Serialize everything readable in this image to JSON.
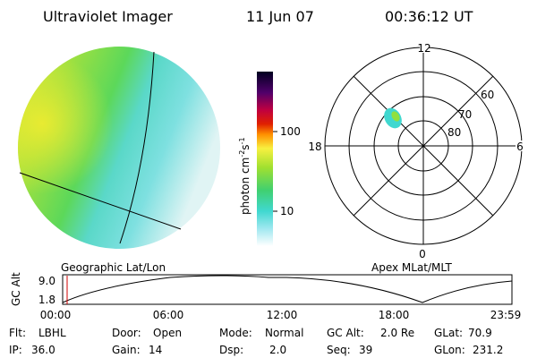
{
  "header": {
    "title": "Ultraviolet Imager",
    "date": "11 Jun 07",
    "time": "00:36:12 UT"
  },
  "colorbar": {
    "label_parts": [
      "photon cm",
      "-2",
      "s",
      "-1"
    ],
    "ticks": [
      "100",
      "10"
    ]
  },
  "polar": {
    "mlt_labels": [
      "12",
      "6",
      "0",
      "18"
    ],
    "lat_labels": [
      "80",
      "70",
      "60"
    ]
  },
  "timeline": {
    "left_label": "Geographic Lat/Lon",
    "right_label": "Apex MLat/MLT",
    "y_label": "GC Alt",
    "y_ticks": [
      "9.0",
      "1.8"
    ],
    "x_ticks": [
      "00:00",
      "06:00",
      "12:00",
      "18:00",
      "23:59"
    ]
  },
  "info": [
    [
      {
        "label": "Flt:",
        "value": "LBHL"
      },
      {
        "label": "Door:",
        "value": "Open"
      },
      {
        "label": "Mode:",
        "value": "Normal"
      },
      {
        "label": "GC Alt:",
        "value": "2.0 Re"
      },
      {
        "label": "GLat:",
        "value": "70.9"
      }
    ],
    [
      {
        "label": "IP:",
        "value": "36.0"
      },
      {
        "label": "Gain:",
        "value": "14"
      },
      {
        "label": "Dsp:",
        "value": "2.0"
      },
      {
        "label": "Seq:",
        "value": "39"
      },
      {
        "label": "GLon:",
        "value": "231.2"
      }
    ]
  ]
}
